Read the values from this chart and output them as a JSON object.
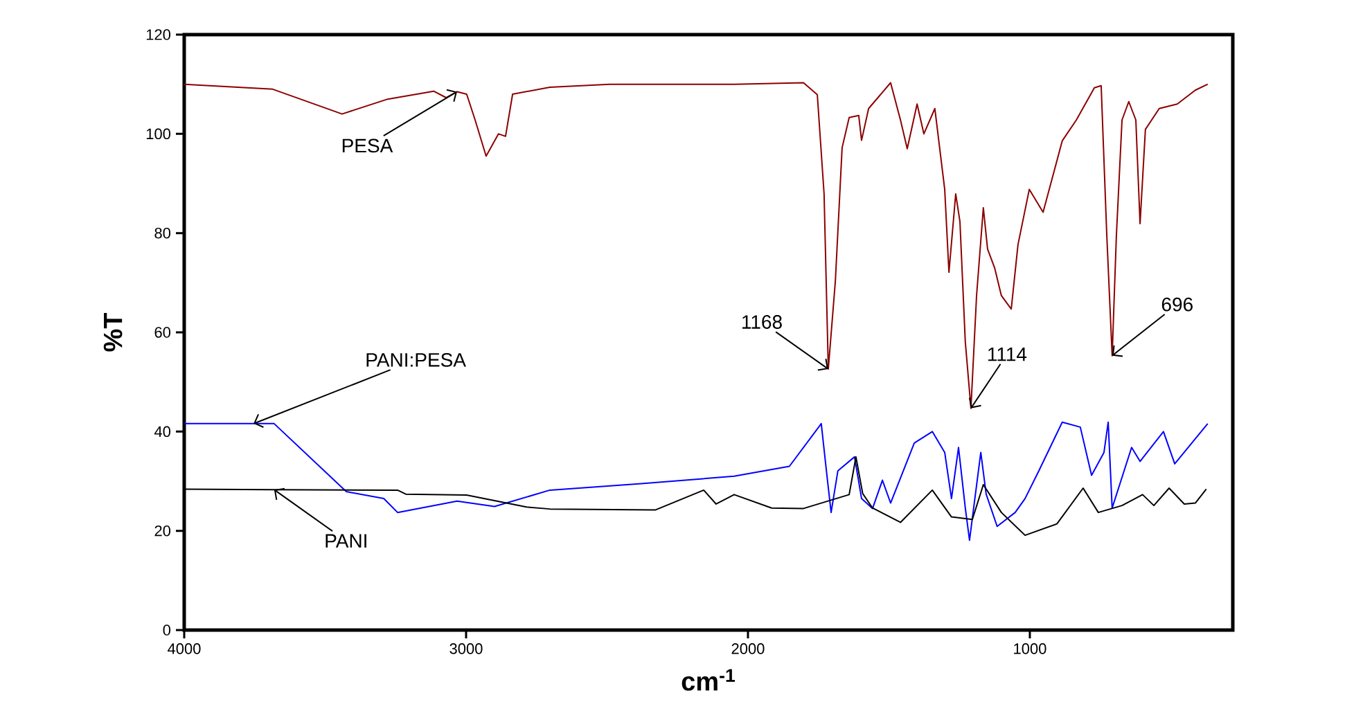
{
  "chart_data": {
    "type": "line",
    "xlabel": "cm$^{-1}$",
    "ylabel": "%T",
    "xlim": [
      4000,
      280
    ],
    "ylim": [
      0,
      120
    ],
    "xticks": [
      4000,
      3000,
      2000,
      1000
    ],
    "yticks": [
      0,
      20,
      40,
      60,
      80,
      100,
      120
    ],
    "grid": false,
    "marker": "none",
    "line_style": "solid",
    "series": [
      {
        "color": "#8b0000",
        "x": [
          4000,
          3686,
          3538,
          3440,
          3278,
          3115,
          3071,
          3032,
          2998,
          2968,
          2929,
          2885,
          2860,
          2835,
          2703,
          2491,
          2049,
          1803,
          1754,
          1730,
          1715,
          1690,
          1666,
          1641,
          1607,
          1597,
          1572,
          1494,
          1459,
          1435,
          1400,
          1376,
          1337,
          1302,
          1287,
          1263,
          1248,
          1229,
          1209,
          1189,
          1165,
          1150,
          1125,
          1101,
          1066,
          1042,
          1002,
          953,
          885,
          835,
          771,
          747,
          727,
          708,
          693,
          673,
          649,
          624,
          609,
          590,
          541,
          477,
          413,
          369
        ],
        "values": [
          110,
          109,
          106,
          104,
          107,
          108.6,
          107.3,
          108.5,
          108,
          102.8,
          95.5,
          100,
          99.5,
          108,
          109.4,
          110,
          110,
          110.3,
          107.9,
          87.9,
          52.6,
          70.3,
          97.2,
          103.3,
          103.7,
          98.7,
          105.1,
          110.3,
          102.8,
          97,
          106,
          100,
          105.1,
          88.8,
          72.1,
          87.9,
          82.3,
          58.1,
          44.7,
          67.4,
          85.1,
          76.8,
          73,
          67.4,
          64.7,
          77.7,
          88.8,
          84.2,
          98.6,
          102.8,
          109.3,
          109.7,
          79.5,
          55.3,
          79.5,
          102.8,
          106.5,
          102.8,
          81.9,
          100.9,
          105.1,
          106,
          108.8,
          110
        ]
      },
      {
        "color": "#0000ff",
        "x": [
          4000,
          3754,
          3681,
          3425,
          3292,
          3243,
          3032,
          2899,
          2703,
          2378,
          2049,
          1853,
          1740,
          1720,
          1705,
          1681,
          1622,
          1597,
          1558,
          1523,
          1494,
          1410,
          1346,
          1302,
          1278,
          1253,
          1229,
          1214,
          1174,
          1155,
          1116,
          1052,
          1017,
          968,
          885,
          821,
          781,
          737,
          722,
          708,
          639,
          609,
          526,
          486,
          369
        ],
        "values": [
          41.6,
          41.6,
          41.6,
          27.9,
          26.5,
          23.7,
          26,
          24.9,
          28.2,
          29.5,
          31,
          33,
          41.6,
          31.2,
          23.7,
          32.1,
          34.9,
          26.5,
          24.5,
          30.2,
          25.6,
          37.7,
          40,
          35.8,
          26.5,
          36.8,
          24.6,
          18.1,
          35.8,
          27.4,
          20.9,
          23.7,
          26.5,
          32.1,
          41.9,
          40.9,
          31.2,
          35.8,
          41.9,
          24.6,
          36.8,
          34,
          40,
          33.5,
          41.6
        ]
      },
      {
        "color": "#000000",
        "x": [
          4000,
          3681,
          3243,
          3214,
          2998,
          2786,
          2703,
          2329,
          2157,
          2113,
          2049,
          1916,
          1803,
          1641,
          1617,
          1593,
          1558,
          1459,
          1346,
          1278,
          1204,
          1165,
          1101,
          1017,
          904,
          811,
          757,
          673,
          600,
          560,
          506,
          452,
          413,
          374
        ],
        "values": [
          28.4,
          28.3,
          28.2,
          27.4,
          27.2,
          24.8,
          24.4,
          24.2,
          28.2,
          25.4,
          27.3,
          24.6,
          24.5,
          27.3,
          34.9,
          27.5,
          24.6,
          21.7,
          28.2,
          22.8,
          22.3,
          29.3,
          23.7,
          19.1,
          21.4,
          28.6,
          23.7,
          25.1,
          27.3,
          25.1,
          28.6,
          25.4,
          25.6,
          28.4
        ]
      }
    ],
    "annotations": [
      {
        "text": "PESA",
        "x": 3032,
        "y": 108.5
      },
      {
        "text": "PANI:PESA",
        "x": 3754,
        "y": 41.6
      },
      {
        "text": "PANI",
        "x": 3681,
        "y": 28.3
      },
      {
        "text": "1168",
        "x": 1715,
        "y": 52.6
      },
      {
        "text": "1114",
        "x": 1209,
        "y": 44.7
      },
      {
        "text": "696",
        "x": 708,
        "y": 55.3
      }
    ]
  }
}
